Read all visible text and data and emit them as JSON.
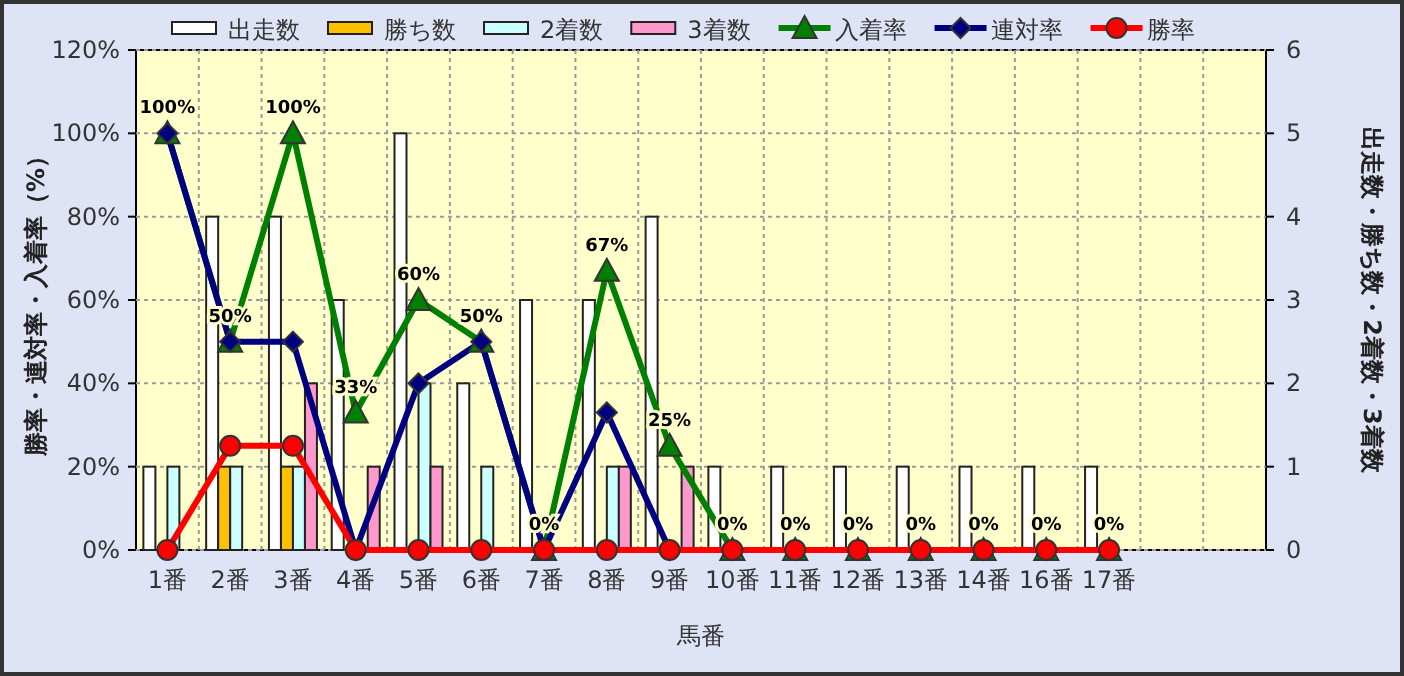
{
  "chart_data": {
    "type": "bar",
    "xlabel": "馬番",
    "ylabel": "勝率・連対率・入着率（%）",
    "y2label": "出走数・勝ち数・2着数・3着数",
    "categories": [
      "1番",
      "2番",
      "3番",
      "4番",
      "5番",
      "6番",
      "7番",
      "8番",
      "9番",
      "10番",
      "11番",
      "12番",
      "13番",
      "14番",
      "16番",
      "17番",
      null,
      null
    ],
    "series": [
      {
        "name": "出走数",
        "axis": "y2",
        "color": "#ffffff",
        "values": [
          1,
          4,
          4,
          3,
          5,
          2,
          3,
          3,
          4,
          1,
          1,
          1,
          1,
          1,
          1,
          1,
          null,
          null
        ]
      },
      {
        "name": "勝ち数",
        "axis": "y2",
        "color": "#ffc000",
        "values": [
          0,
          1,
          1,
          0,
          0,
          0,
          0,
          0,
          0,
          0,
          0,
          0,
          0,
          0,
          0,
          0,
          null,
          null
        ]
      },
      {
        "name": "2着数",
        "axis": "y2",
        "color": "#ccffff",
        "values": [
          1,
          1,
          1,
          0,
          2,
          1,
          0,
          1,
          0,
          0,
          0,
          0,
          0,
          0,
          0,
          0,
          null,
          null
        ]
      },
      {
        "name": "3着数",
        "axis": "y2",
        "color": "#ff99cc",
        "values": [
          0,
          0,
          2,
          1,
          1,
          0,
          0,
          1,
          1,
          0,
          0,
          0,
          0,
          0,
          0,
          0,
          null,
          null
        ]
      },
      {
        "name": "入着率",
        "type": "line",
        "color": "#008000",
        "marker": "triangle",
        "values": [
          100,
          50,
          100,
          33,
          60,
          50,
          0,
          67,
          25,
          0,
          0,
          0,
          0,
          0,
          0,
          0,
          null,
          null
        ],
        "value_labels": [
          "100%",
          "50%",
          "100%",
          "33%",
          "60%",
          "50%",
          "0%",
          "67%",
          "25%",
          "0%",
          "0%",
          "0%",
          "0%",
          "0%",
          "0%",
          "0%",
          null,
          null
        ]
      },
      {
        "name": "連対率",
        "type": "line",
        "color": "#000080",
        "marker": "diamond",
        "values": [
          100,
          50,
          50,
          0,
          40,
          50,
          0,
          33,
          0,
          0,
          0,
          0,
          0,
          0,
          0,
          0,
          null,
          null
        ]
      },
      {
        "name": "勝率",
        "type": "line",
        "color": "#ff0000",
        "marker": "circle",
        "values": [
          0,
          25,
          25,
          0,
          0,
          0,
          0,
          0,
          0,
          0,
          0,
          0,
          0,
          0,
          0,
          0,
          null,
          null
        ]
      }
    ],
    "ylim": [
      0,
      120
    ],
    "yticks": [
      {
        "value": 0,
        "label": "0%"
      },
      {
        "value": 20,
        "label": "20%"
      },
      {
        "value": 40,
        "label": "40%"
      },
      {
        "value": 60,
        "label": "60%"
      },
      {
        "value": 80,
        "label": "80%"
      },
      {
        "value": 100,
        "label": "100%"
      },
      {
        "value": 120,
        "label": "120%"
      }
    ],
    "y2lim": [
      0,
      6
    ],
    "y2ticks": [
      0,
      1,
      2,
      3,
      4,
      5,
      6
    ],
    "grid": true,
    "legend": "top"
  }
}
